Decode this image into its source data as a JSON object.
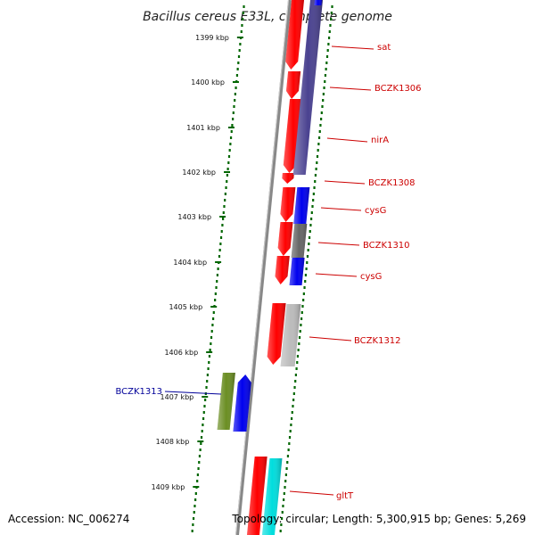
{
  "title": "Bacillus cereus E33L, complete genome",
  "accession": "Accession: NC_006274",
  "summary": "Topology: circular; Length: 5,300,915 bp; Genes: 5,269",
  "colors": {
    "backbone": "#888888",
    "tick": "#006600",
    "label_red": "#cc0000",
    "label_blue": "#000099"
  },
  "ticks": [
    "1399 kbp",
    "1400 kbp",
    "1401 kbp",
    "1402 kbp",
    "1403 kbp",
    "1404 kbp",
    "1405 kbp",
    "1406 kbp",
    "1407 kbp",
    "1408 kbp",
    "1409 kbp"
  ],
  "gene_labels": [
    {
      "text": "sat",
      "color": "#cc0000"
    },
    {
      "text": "BCZK1306",
      "color": "#cc0000"
    },
    {
      "text": "nirA",
      "color": "#cc0000"
    },
    {
      "text": "BCZK1308",
      "color": "#cc0000"
    },
    {
      "text": "cysG",
      "color": "#cc0000"
    },
    {
      "text": "BCZK1310",
      "color": "#cc0000"
    },
    {
      "text": "cysG",
      "color": "#cc0000"
    },
    {
      "text": "BCZK1312",
      "color": "#cc0000"
    },
    {
      "text": "BCZK1313",
      "color": "#000099"
    },
    {
      "text": "gltT",
      "color": "#cc0000"
    }
  ],
  "feature_colors": {
    "cds": "#ff0000",
    "cog_purple": "#4a4290",
    "cog_blue": "#0000ee",
    "cog_gray": "#666666",
    "cog_lightgray": "#bbbbbb",
    "cog_olive": "#6b8e23",
    "cog_cyan": "#00dddd"
  }
}
